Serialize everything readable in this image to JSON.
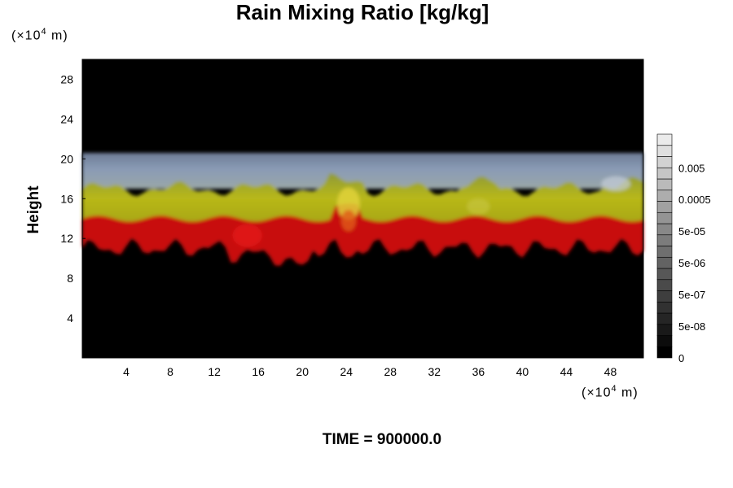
{
  "chart_data": {
    "type": "heatmap",
    "title": "Rain Mixing Ratio [kg/kg]",
    "ylabel": "Height",
    "y_unit": {
      "prefix": "(×10",
      "exp": "4",
      "suffix": " m)"
    },
    "x_unit": {
      "prefix": "(×10",
      "exp": "4",
      "suffix": " m)"
    },
    "xlim": [
      0,
      51
    ],
    "ylim": [
      0,
      30
    ],
    "x_ticks": [
      4,
      8,
      12,
      16,
      20,
      24,
      28,
      32,
      36,
      40,
      44,
      48
    ],
    "y_ticks": [
      4,
      8,
      12,
      16,
      20,
      24,
      28
    ],
    "colorbar_labels": [
      "0",
      "5e-08",
      "5e-07",
      "5e-06",
      "5e-05",
      "0.0005",
      "0.005"
    ],
    "colorbar_steps": 20,
    "footer": "TIME = 900000.0",
    "layers": [
      {
        "band": "gray-blue",
        "y_range": [
          17,
          20.6
        ]
      },
      {
        "band": "yellow-olive",
        "y_range": [
          13.5,
          17
        ]
      },
      {
        "band": "red",
        "y_range": [
          11,
          14
        ]
      }
    ],
    "colors": {
      "background": "#000000",
      "red": "#c81010",
      "yellow": "#b8b81a",
      "gray_blue": "#8a9bb5"
    }
  }
}
